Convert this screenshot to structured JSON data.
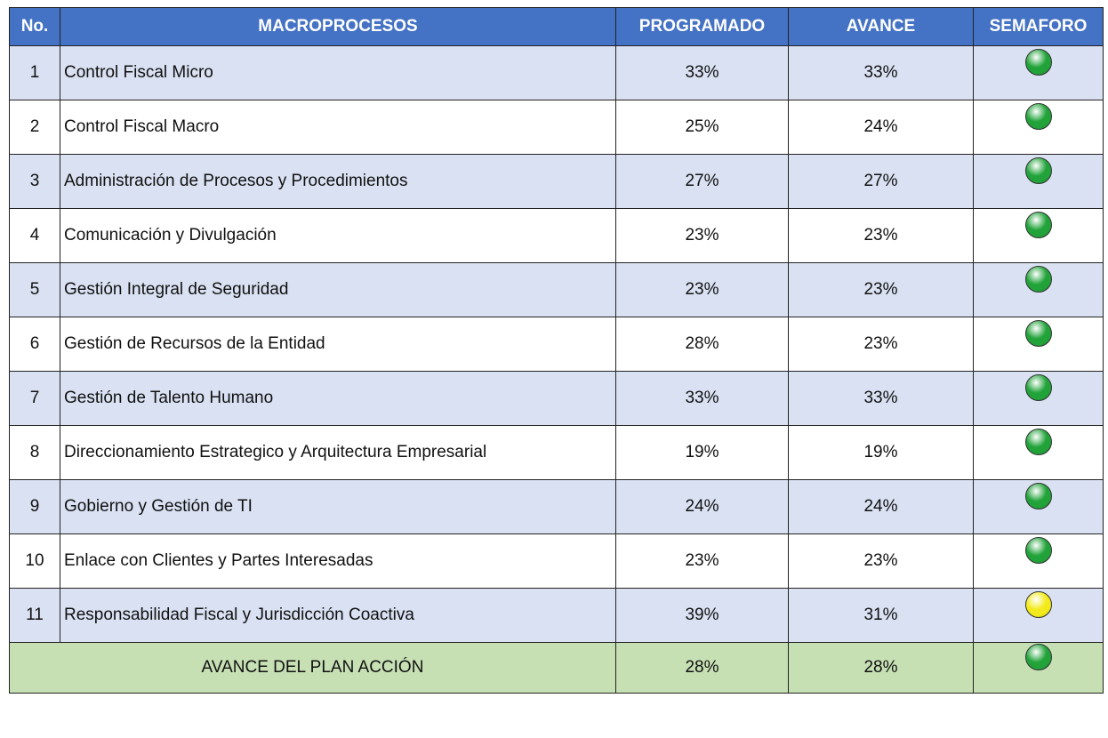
{
  "table": {
    "header": [
      "No.",
      "MACROPROCESOS",
      "PROGRAMADO",
      "AVANCE",
      "SEMAFORO"
    ],
    "rows": [
      {
        "no": "1",
        "name": "Control Fiscal Micro",
        "programado": "33%",
        "avance": "33%",
        "semaforo": "#22a33a"
      },
      {
        "no": "2",
        "name": "Control Fiscal Macro",
        "programado": "25%",
        "avance": "24%",
        "semaforo": "#22a33a"
      },
      {
        "no": "3",
        "name": "Administración de Procesos y Procedimientos",
        "programado": "27%",
        "avance": "27%",
        "semaforo": "#22a33a"
      },
      {
        "no": "4",
        "name": "Comunicación y Divulgación",
        "programado": "23%",
        "avance": "23%",
        "semaforo": "#22a33a"
      },
      {
        "no": "5",
        "name": "Gestión Integral de Seguridad",
        "programado": "23%",
        "avance": "23%",
        "semaforo": "#22a33a"
      },
      {
        "no": "6",
        "name": "Gestión de Recursos de la Entidad",
        "programado": "28%",
        "avance": "23%",
        "semaforo": "#22a33a"
      },
      {
        "no": "7",
        "name": "Gestión de Talento Humano",
        "programado": "33%",
        "avance": "33%",
        "semaforo": "#22a33a"
      },
      {
        "no": "8",
        "name": "Direccionamiento Estrategico y Arquitectura Empresarial",
        "programado": "19%",
        "avance": "19%",
        "semaforo": "#22a33a"
      },
      {
        "no": "9",
        "name": "Gobierno y Gestión de TI",
        "programado": "24%",
        "avance": "24%",
        "semaforo": "#22a33a"
      },
      {
        "no": "10",
        "name": "Enlace con Clientes y Partes Interesadas",
        "programado": "23%",
        "avance": "23%",
        "semaforo": "#22a33a"
      },
      {
        "no": "11",
        "name": "Responsabilidad Fiscal y Jurisdicción Coactiva",
        "programado": "39%",
        "avance": "31%",
        "semaforo": "#f2ea1a"
      }
    ],
    "footer": {
      "label": "AVANCE DEL PLAN ACCIÓN",
      "programado": "28%",
      "avance": "28%",
      "semaforo": "#22a33a"
    }
  }
}
